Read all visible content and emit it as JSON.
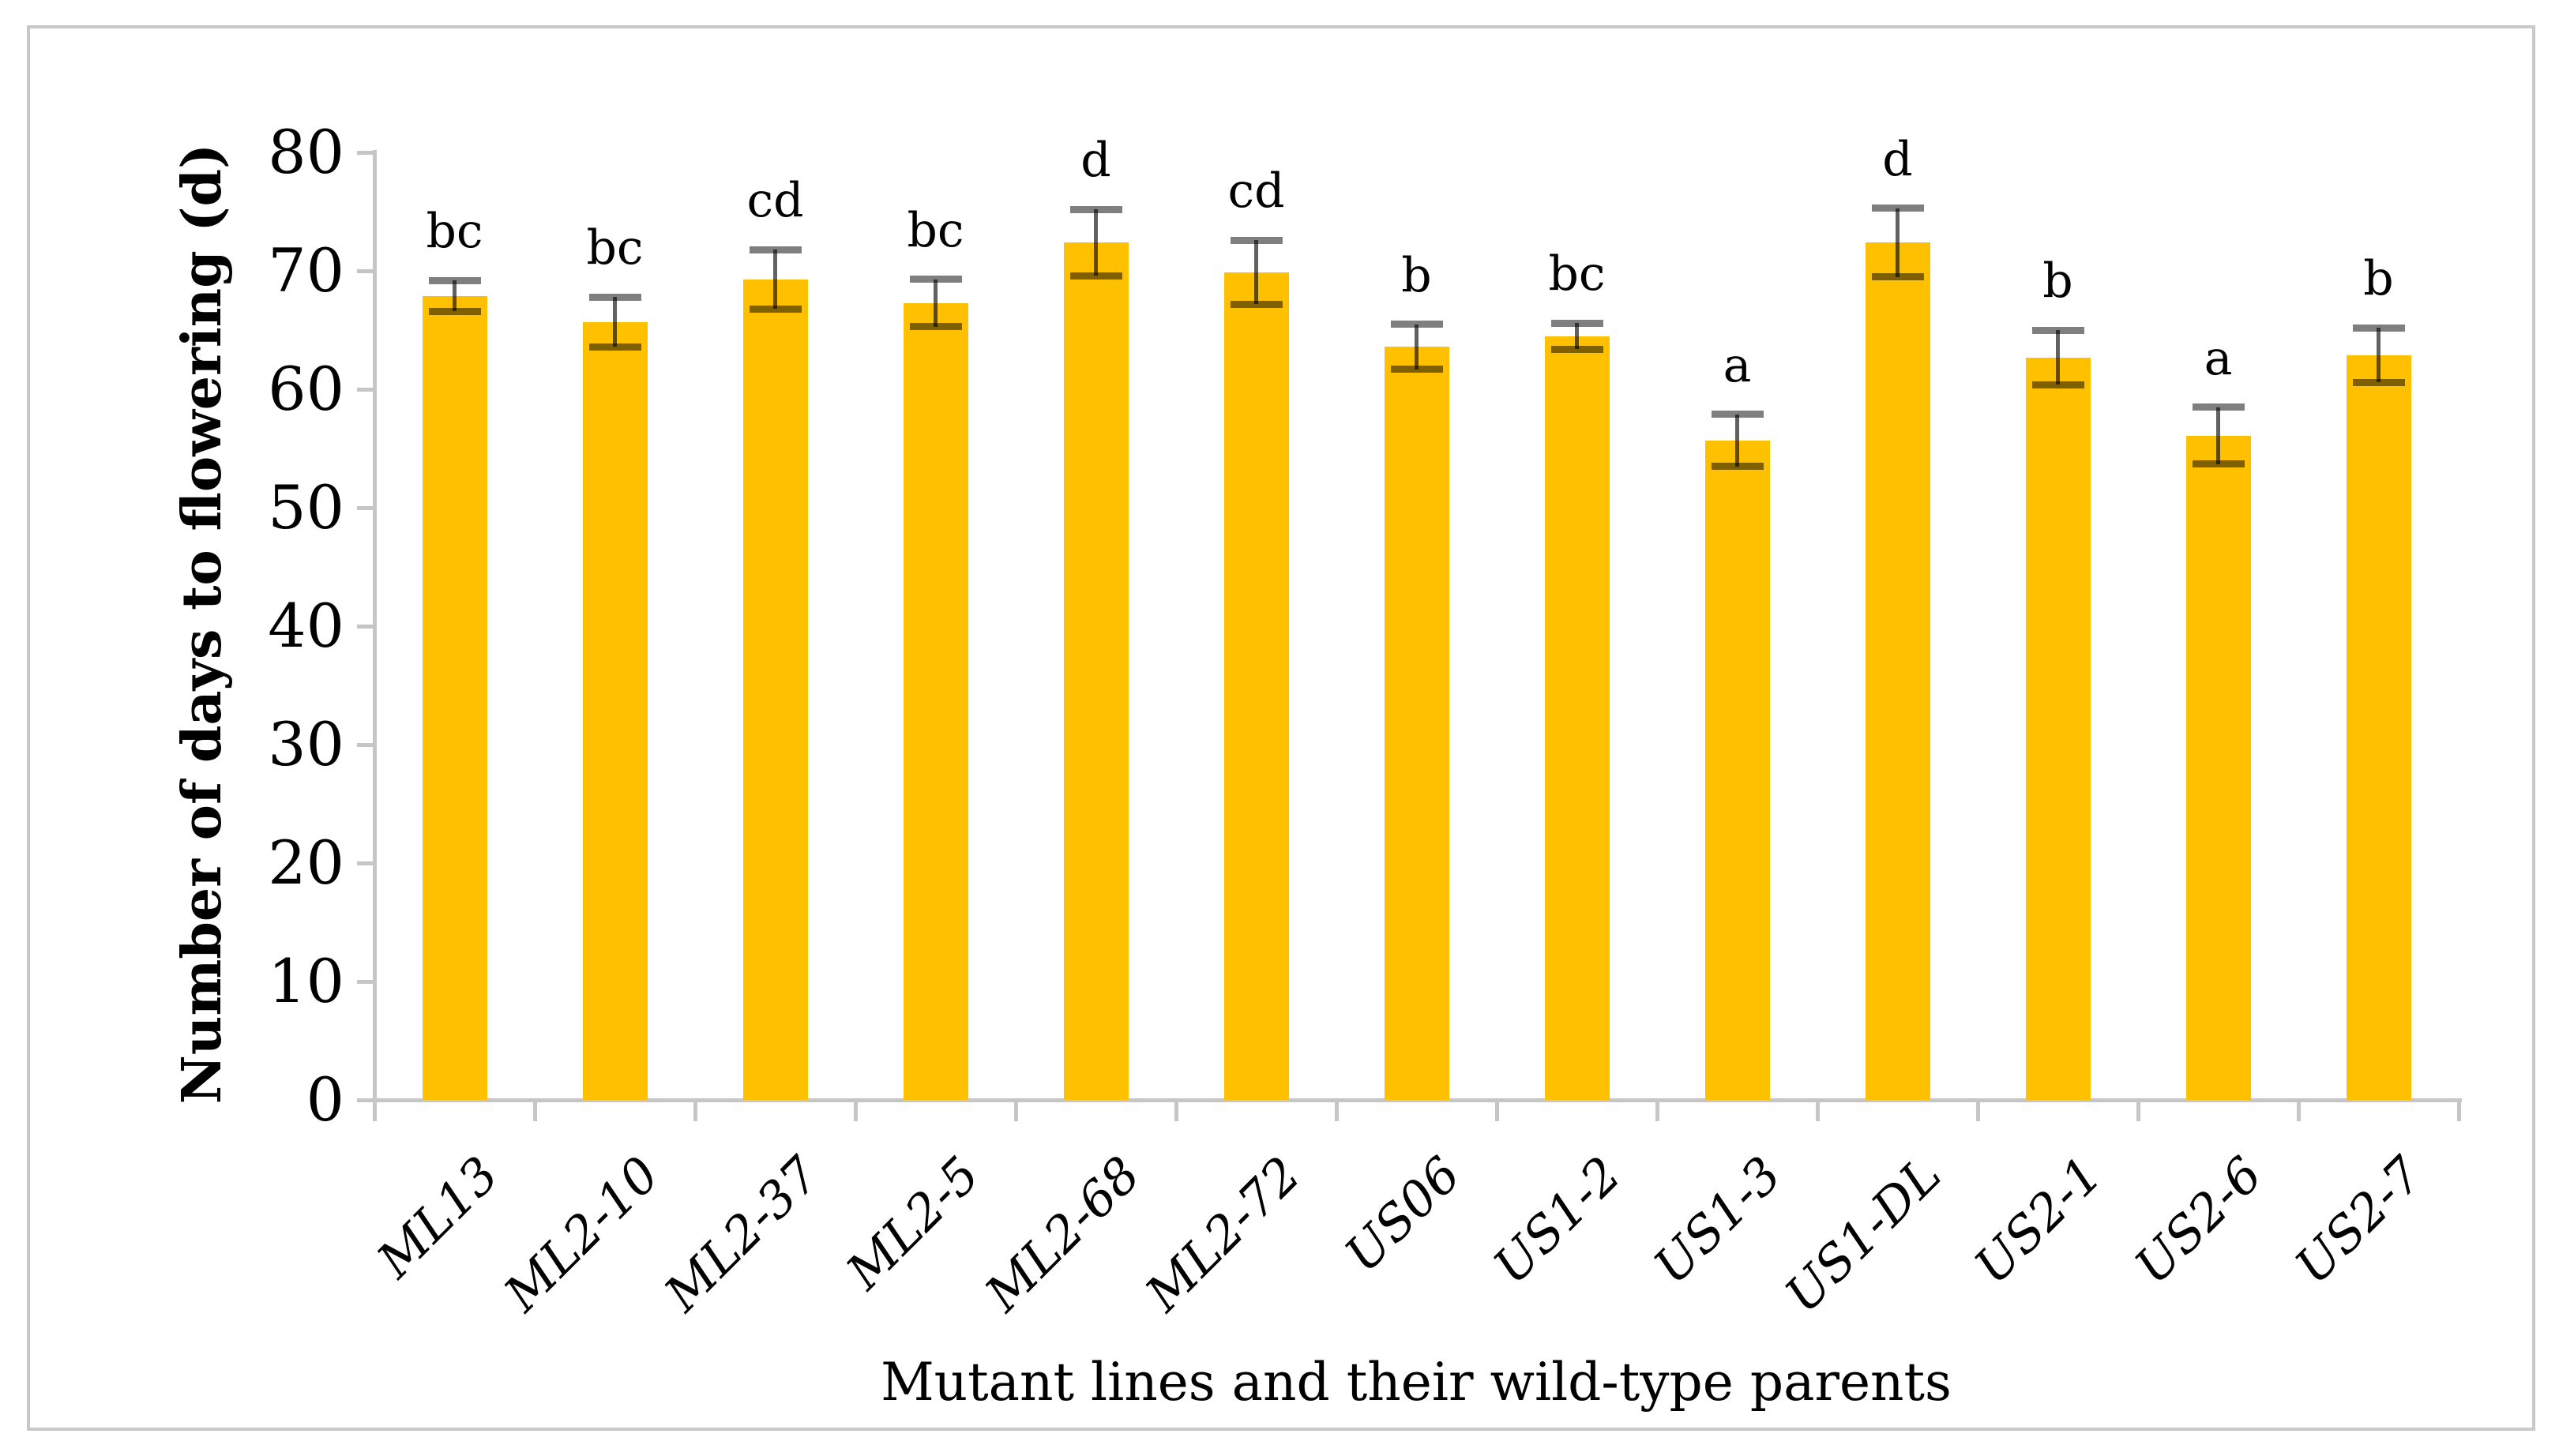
{
  "figure": {
    "description": "Bar chart of days to flowering for mutant lines and wild-type parents"
  },
  "chart_data": {
    "type": "bar",
    "title": "",
    "xlabel": "Mutant lines and their wild-type parents",
    "ylabel": "Number of days to flowering (d)",
    "ylim": [
      0,
      80
    ],
    "ytick_step": 10,
    "ytick_labels": [
      "0",
      "10",
      "20",
      "30",
      "40",
      "50",
      "60",
      "70",
      "80"
    ],
    "grid": false,
    "legend_position": "none",
    "bar_color": "#FFC000",
    "error_bar_color": "#595959",
    "axis_color": "#C6C6C6",
    "categories": [
      "ML13",
      "ML2-10",
      "ML2-37",
      "ML2-5",
      "ML2-68",
      "ML2-72",
      "US06",
      "US1-2",
      "US1-3",
      "US1-DL",
      "US2-1",
      "US2-6",
      "US2-7"
    ],
    "values": [
      67.9,
      65.7,
      69.3,
      67.3,
      72.4,
      69.9,
      63.6,
      64.5,
      55.7,
      72.4,
      62.7,
      56.1,
      62.9
    ],
    "errors": [
      1.3,
      2.1,
      2.5,
      2.0,
      2.8,
      2.7,
      1.9,
      1.1,
      2.2,
      2.9,
      2.3,
      2.4,
      2.3
    ],
    "significance_letters": [
      "bc",
      "bc",
      "cd",
      "bc",
      "d",
      "cd",
      "b",
      "bc",
      "a",
      "d",
      "b",
      "a",
      "b"
    ]
  }
}
